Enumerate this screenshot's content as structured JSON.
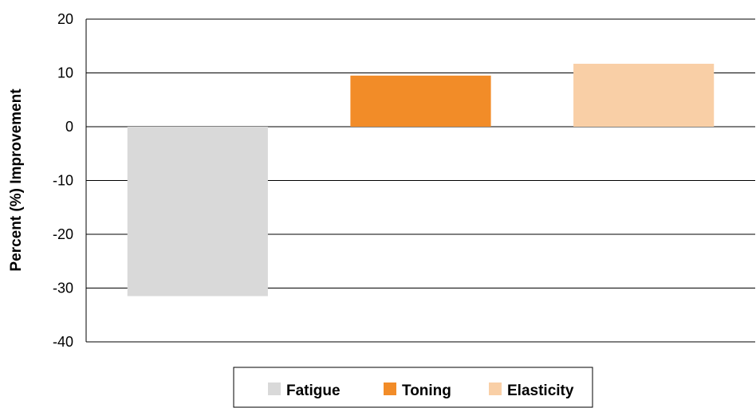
{
  "chart_data": {
    "type": "bar",
    "categories": [
      "Fatigue",
      "Toning",
      "Elasticity"
    ],
    "values": [
      -31.5,
      9.5,
      11.7
    ],
    "colors": [
      "#d9d9d9",
      "#f28c28",
      "#f9cfa6"
    ],
    "title": "",
    "xlabel": "",
    "ylabel": "Percent (%) Improvement",
    "ylim": [
      -40,
      20
    ],
    "yticks": [
      "20",
      "10",
      "0",
      "-10",
      "-20",
      "-30",
      "-40"
    ],
    "grid": true,
    "legend": {
      "placement": "bottom",
      "entries": [
        "Fatigue",
        "Toning",
        "Elasticity"
      ]
    }
  }
}
